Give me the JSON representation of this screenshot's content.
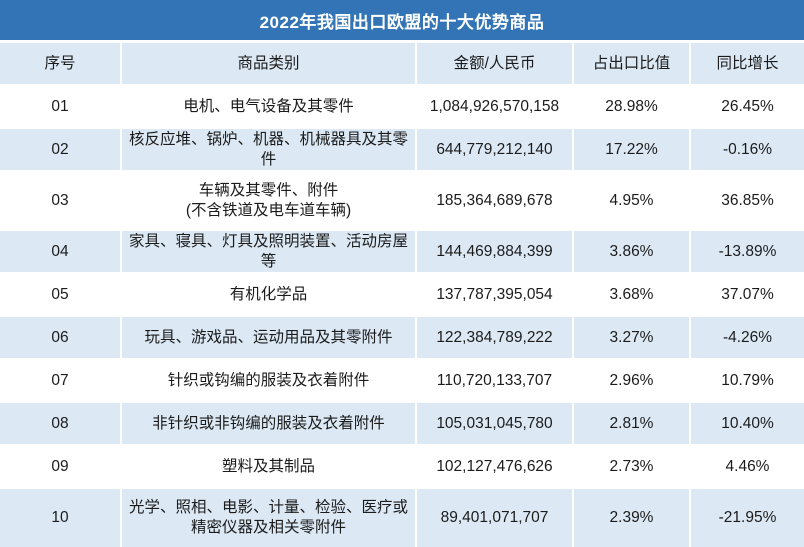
{
  "title": "2022年我国出口欧盟的十大优势商品",
  "colors": {
    "title_bar": "#3274B5",
    "title_text": "#FFFFFF",
    "row_stripe": "#DCE9F5",
    "row_plain": "#FFFFFF",
    "cell_text": "#1B1B1B"
  },
  "table": {
    "headers": [
      "序号",
      "商品类别",
      "金额/人民币",
      "占出口比值",
      "同比增长"
    ],
    "rows": [
      {
        "no": "01",
        "category": "电机、电气设备及其零件",
        "amount": "1,084,926,570,158",
        "share": "28.98%",
        "yoy": "26.45%"
      },
      {
        "no": "02",
        "category": "核反应堆、锅炉、机器、机械器具及其零件",
        "amount": "644,779,212,140",
        "share": "17.22%",
        "yoy": "-0.16%"
      },
      {
        "no": "03",
        "category": "车辆及其零件、附件\n(不含铁道及电车道车辆)",
        "amount": "185,364,689,678",
        "share": "4.95%",
        "yoy": "36.85%"
      },
      {
        "no": "04",
        "category": "家具、寝具、灯具及照明装置、活动房屋等",
        "amount": "144,469,884,399",
        "share": "3.86%",
        "yoy": "-13.89%"
      },
      {
        "no": "05",
        "category": "有机化学品",
        "amount": "137,787,395,054",
        "share": "3.68%",
        "yoy": "37.07%"
      },
      {
        "no": "06",
        "category": "玩具、游戏品、运动用品及其零附件",
        "amount": "122,384,789,222",
        "share": "3.27%",
        "yoy": "-4.26%"
      },
      {
        "no": "07",
        "category": "针织或钩编的服装及衣着附件",
        "amount": "110,720,133,707",
        "share": "2.96%",
        "yoy": "10.79%"
      },
      {
        "no": "08",
        "category": "非针织或非钩编的服装及衣着附件",
        "amount": "105,031,045,780",
        "share": "2.81%",
        "yoy": "10.40%"
      },
      {
        "no": "09",
        "category": "塑料及其制品",
        "amount": "102,127,476,626",
        "share": "2.73%",
        "yoy": "4.46%"
      },
      {
        "no": "10",
        "category": "光学、照相、电影、计量、检验、医疗或\n精密仪器及相关零附件",
        "amount": "89,401,071,707",
        "share": "2.39%",
        "yoy": "-21.95%"
      }
    ]
  },
  "chart_data": {
    "type": "table",
    "title": "2022年我国出口欧盟的十大优势商品",
    "columns": [
      "序号",
      "商品类别",
      "金额/人民币",
      "占出口比值",
      "同比增长"
    ],
    "rows": [
      [
        "01",
        "电机、电气设备及其零件",
        "1,084,926,570,158",
        "28.98%",
        "26.45%"
      ],
      [
        "02",
        "核反应堆、锅炉、机器、机械器具及其零件",
        "644,779,212,140",
        "17.22%",
        "-0.16%"
      ],
      [
        "03",
        "车辆及其零件、附件(不含铁道及电车道车辆)",
        "185,364,689,678",
        "4.95%",
        "36.85%"
      ],
      [
        "04",
        "家具、寝具、灯具及照明装置、活动房屋等",
        "144,469,884,399",
        "3.86%",
        "-13.89%"
      ],
      [
        "05",
        "有机化学品",
        "137,787,395,054",
        "3.68%",
        "37.07%"
      ],
      [
        "06",
        "玩具、游戏品、运动用品及其零附件",
        "122,384,789,222",
        "3.27%",
        "-4.26%"
      ],
      [
        "07",
        "针织或钩编的服装及衣着附件",
        "110,720,133,707",
        "2.96%",
        "10.79%"
      ],
      [
        "08",
        "非针织或非钩编的服装及衣着附件",
        "105,031,045,780",
        "2.81%",
        "10.40%"
      ],
      [
        "09",
        "塑料及其制品",
        "102,127,476,626",
        "2.73%",
        "4.46%"
      ],
      [
        "10",
        "光学、照相、电影、计量、检验、医疗或精密仪器及相关零附件",
        "89,401,071,707",
        "2.39%",
        "-21.95%"
      ]
    ],
    "share_values_pct": [
      28.98,
      17.22,
      4.95,
      3.86,
      3.68,
      3.27,
      2.96,
      2.81,
      2.73,
      2.39
    ],
    "yoy_values_pct": [
      26.45,
      -0.16,
      36.85,
      -13.89,
      37.07,
      -4.26,
      10.79,
      10.4,
      4.46,
      -21.95
    ]
  }
}
